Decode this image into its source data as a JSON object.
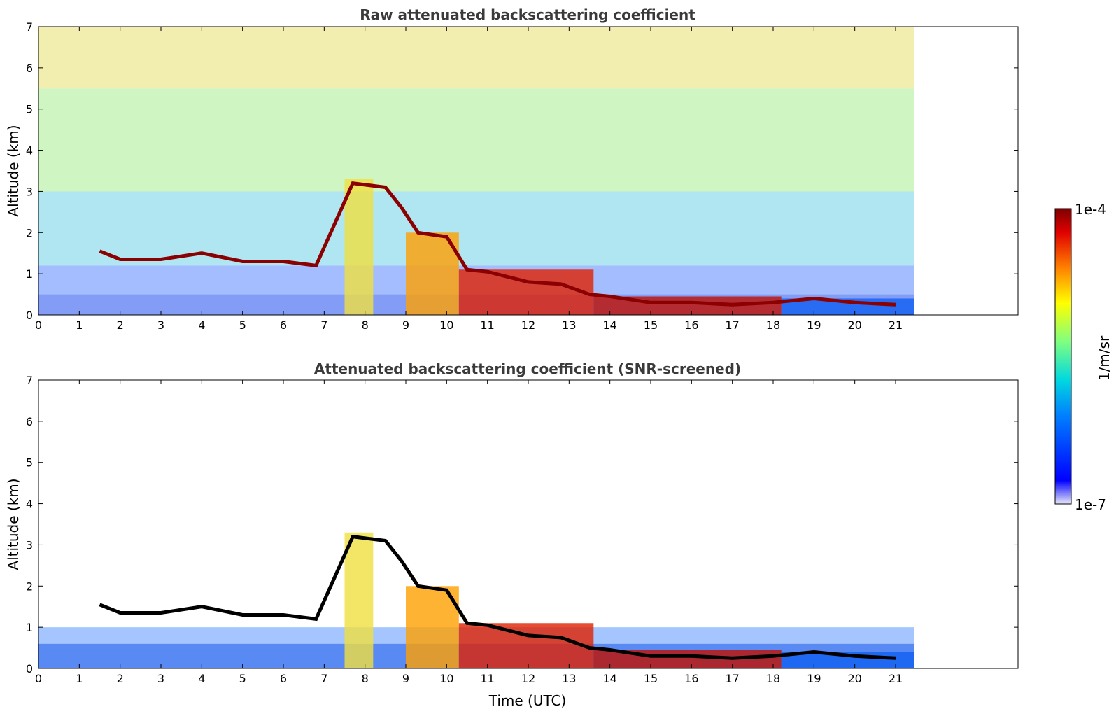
{
  "chart_data": [
    {
      "type": "heatmap",
      "title": "Raw attenuated backscattering coefficient",
      "xlabel": "",
      "ylabel": "Altitude (km)",
      "xlim": [
        0,
        24
      ],
      "ylim": [
        0,
        7
      ],
      "xticks": [
        0,
        1,
        2,
        3,
        4,
        5,
        6,
        7,
        8,
        9,
        10,
        11,
        12,
        13,
        14,
        15,
        16,
        17,
        18,
        19,
        20,
        21
      ],
      "yticks": [
        0,
        1,
        2,
        3,
        4,
        5,
        6,
        7
      ],
      "data_end_time": 21.45,
      "color_scale": "log",
      "grid": false,
      "cloud_layer_altitude_km": [
        [
          1.5,
          1.55
        ],
        [
          2.0,
          1.35
        ],
        [
          3.0,
          1.35
        ],
        [
          4.0,
          1.5
        ],
        [
          5.0,
          1.3
        ],
        [
          6.0,
          1.3
        ],
        [
          6.8,
          1.2
        ],
        [
          7.7,
          3.2
        ],
        [
          8.5,
          3.1
        ],
        [
          8.9,
          2.6
        ],
        [
          9.3,
          2.0
        ],
        [
          10.0,
          1.9
        ],
        [
          10.5,
          1.1
        ],
        [
          11.0,
          1.05
        ],
        [
          12.0,
          0.8
        ],
        [
          12.8,
          0.75
        ],
        [
          13.5,
          0.5
        ],
        [
          14.0,
          0.45
        ],
        [
          15.0,
          0.3
        ],
        [
          16.0,
          0.3
        ],
        [
          17.0,
          0.25
        ],
        [
          18.0,
          0.3
        ],
        [
          19.0,
          0.4
        ],
        [
          20.0,
          0.3
        ],
        [
          21.0,
          0.25
        ]
      ]
    },
    {
      "type": "heatmap",
      "title": "Attenuated backscattering coefficient (SNR-screened)",
      "xlabel": "Time (UTC)",
      "ylabel": "Altitude (km)",
      "xlim": [
        0,
        24
      ],
      "ylim": [
        0,
        7
      ],
      "xticks": [
        0,
        1,
        2,
        3,
        4,
        5,
        6,
        7,
        8,
        9,
        10,
        11,
        12,
        13,
        14,
        15,
        16,
        17,
        18,
        19,
        20,
        21
      ],
      "yticks": [
        0,
        1,
        2,
        3,
        4,
        5,
        6,
        7
      ],
      "data_end_time": 21.45,
      "color_scale": "log",
      "grid": false
    }
  ],
  "colorbar": {
    "label": "1/m/sr",
    "max_label": "1e-4",
    "min_label": "1e-7",
    "colors": [
      "#e8e8f8",
      "#0000ff",
      "#0080ff",
      "#00d8e0",
      "#80ff80",
      "#ffff00",
      "#ff8000",
      "#e00000",
      "#800000"
    ]
  }
}
